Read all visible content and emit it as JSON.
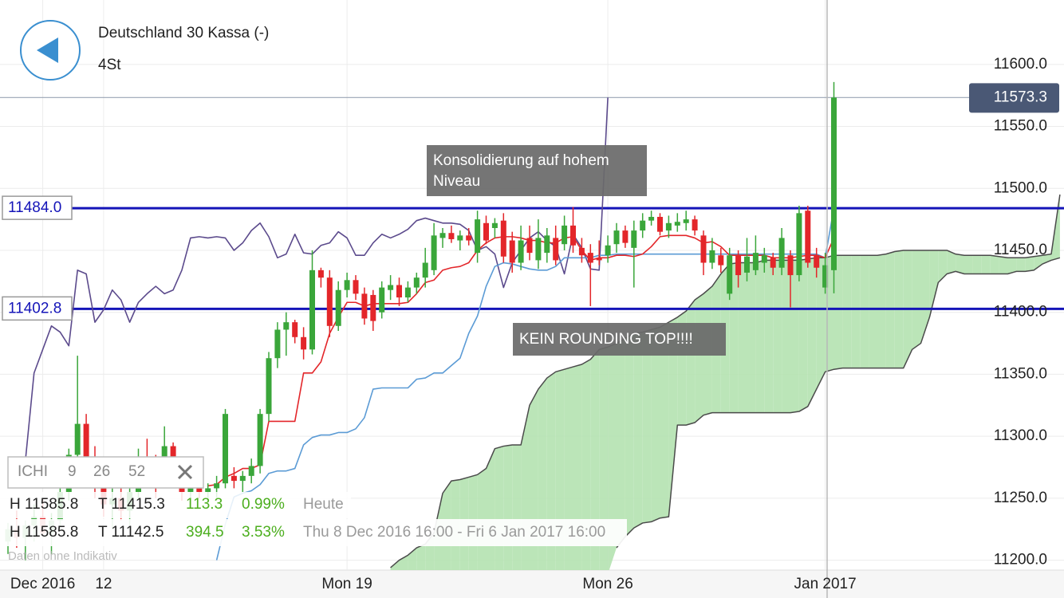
{
  "chart_data": {
    "type": "candlestick",
    "title": "Deutschland 30 Kassa (-)",
    "subtitle": "4St",
    "categories": [
      null,
      null,
      null,
      null,
      "Dec 2016",
      null,
      null,
      null,
      null,
      null,
      null,
      "12",
      null,
      null,
      null,
      null,
      null,
      null,
      null,
      null,
      null,
      null,
      null,
      null,
      null,
      null,
      null,
      null,
      null,
      null,
      null,
      null,
      null,
      null,
      null,
      null,
      null,
      null,
      null,
      "Mon 19",
      null,
      null,
      null,
      null,
      null,
      null,
      null,
      null,
      null,
      null,
      null,
      null,
      null,
      null,
      null,
      null,
      null,
      null,
      null,
      null,
      null,
      null,
      null,
      null,
      null,
      null,
      null,
      null,
      null,
      "Mon 26",
      null,
      null,
      null,
      null,
      null,
      null,
      null,
      null,
      null,
      null,
      null,
      null,
      null,
      null,
      null,
      null,
      null,
      null,
      null,
      null,
      null,
      null,
      null,
      null,
      "Jan 2017",
      null,
      null,
      null,
      null,
      null,
      null,
      null,
      null,
      null,
      null,
      null,
      null,
      null,
      null,
      null,
      null,
      null,
      null,
      null,
      null,
      null,
      null,
      null,
      null,
      null,
      null,
      null
    ],
    "open": [
      11215,
      11225,
      11218,
      11228,
      11235,
      11222,
      11232,
      11255,
      11285,
      11310,
      11283,
      11260,
      11245,
      11250,
      11240,
      11255,
      11280,
      11270,
      11262,
      11292,
      11268,
      11255,
      11260,
      11255,
      11258,
      11262,
      11268,
      11264,
      11268,
      11276,
      11318,
      11363,
      11386,
      11392,
      11380,
      11370,
      11434,
      11428,
      11389,
      11418,
      11426,
      11415,
      11414,
      11400,
      11418,
      11422,
      11412,
      11420,
      11428,
      11434,
      11460,
      11464,
      11458,
      11462,
      11448,
      11472,
      11468,
      11474,
      11458,
      11440,
      11460,
      11442,
      11448,
      11460,
      11455,
      11470,
      11452,
      11448,
      11444,
      11446,
      11455,
      11466,
      11452,
      11466,
      11474,
      11477,
      11466,
      11470,
      11472,
      11475,
      11462,
      11440,
      11446,
      11415,
      11446,
      11432,
      11434,
      11440,
      11444,
      11436,
      11446,
      11430,
      11482,
      11446,
      11420,
      11434,
      null,
      null,
      null,
      null,
      null,
      null,
      null,
      null,
      null,
      null,
      null,
      null,
      null,
      null,
      null,
      null,
      null,
      null,
      null,
      null,
      null,
      null,
      null,
      null,
      null,
      null
    ],
    "high": [
      11230,
      11240,
      11232,
      11245,
      11250,
      11238,
      11262,
      11290,
      11365,
      11318,
      11292,
      11270,
      11258,
      11262,
      11262,
      11290,
      11298,
      11285,
      11308,
      11295,
      11275,
      11266,
      11265,
      11262,
      11268,
      11322,
      11275,
      11272,
      11282,
      11322,
      11368,
      11392,
      11400,
      11394,
      11388,
      11450,
      11436,
      11434,
      11425,
      11432,
      11430,
      11420,
      11418,
      11425,
      11430,
      11428,
      11425,
      11432,
      11452,
      11472,
      11468,
      11470,
      11466,
      11468,
      11482,
      11478,
      11476,
      11480,
      11465,
      11470,
      11470,
      11475,
      11468,
      11470,
      11478,
      11485,
      11460,
      11455,
      11458,
      11462,
      11472,
      11470,
      11474,
      11480,
      11482,
      11480,
      11478,
      11480,
      11482,
      11478,
      11466,
      11460,
      11452,
      11452,
      11450,
      11460,
      11462,
      11452,
      11448,
      11468,
      11450,
      11486,
      11486,
      11452,
      11448,
      11585.8,
      null,
      null,
      null,
      null,
      null,
      null,
      null,
      null,
      null,
      null,
      null,
      null,
      null,
      null,
      null,
      null,
      null,
      null,
      null,
      null,
      null,
      null,
      null,
      null,
      null,
      null
    ],
    "low": [
      11205,
      11210,
      11200,
      11215,
      11220,
      11205,
      11225,
      11248,
      11278,
      11275,
      11250,
      11235,
      11225,
      11232,
      11228,
      11250,
      11262,
      11250,
      11258,
      11262,
      11248,
      11245,
      11250,
      11248,
      11250,
      11258,
      11258,
      11255,
      11262,
      11270,
      11312,
      11355,
      11365,
      11375,
      11362,
      11366,
      11420,
      11380,
      11385,
      11412,
      11410,
      11390,
      11385,
      11395,
      11410,
      11405,
      11408,
      11415,
      11420,
      11430,
      11452,
      11456,
      11450,
      11454,
      11440,
      11455,
      11460,
      11440,
      11432,
      11434,
      11442,
      11435,
      11440,
      11438,
      11450,
      11448,
      11440,
      11405,
      11438,
      11440,
      11448,
      11452,
      11420,
      11460,
      11470,
      11462,
      11460,
      11465,
      11466,
      11462,
      11430,
      11435,
      11432,
      11410,
      11420,
      11425,
      11430,
      11432,
      11430,
      11430,
      11404,
      11425,
      11436,
      11428,
      11415,
      11415.3,
      null,
      null,
      null,
      null,
      null,
      null,
      null,
      null,
      null,
      null,
      null,
      null,
      null,
      null,
      null,
      null,
      null,
      null,
      null,
      null,
      null,
      null,
      null,
      null,
      null,
      null
    ],
    "close": [
      11225,
      11218,
      11228,
      11235,
      11222,
      11232,
      11255,
      11285,
      11310,
      11283,
      11260,
      11245,
      11250,
      11240,
      11255,
      11280,
      11270,
      11262,
      11292,
      11268,
      11255,
      11260,
      11255,
      11258,
      11262,
      11318,
      11264,
      11268,
      11276,
      11318,
      11363,
      11386,
      11392,
      11380,
      11370,
      11434,
      11428,
      11389,
      11418,
      11426,
      11415,
      11395,
      11393,
      11420,
      11422,
      11412,
      11420,
      11428,
      11440,
      11462,
      11464,
      11459,
      11462,
      11458,
      11475,
      11458,
      11472,
      11445,
      11440,
      11458,
      11448,
      11460,
      11462,
      11442,
      11470,
      11454,
      11446,
      11440,
      11442,
      11454,
      11466,
      11456,
      11466,
      11474,
      11477,
      11465,
      11472,
      11473,
      11475,
      11466,
      11440,
      11450,
      11438,
      11446,
      11430,
      11445,
      11448,
      11446,
      11436,
      11460,
      11430,
      11480,
      11440,
      11436,
      11438,
      11573.3,
      null,
      null,
      null,
      null,
      null,
      null,
      null,
      null,
      null,
      null,
      null,
      null,
      null,
      null,
      null,
      null,
      null,
      null,
      null,
      null,
      null,
      null,
      null,
      null,
      null,
      null
    ],
    "up_color": "#3aa63a",
    "down_color": "#e3262a",
    "lines": [
      {
        "color": "#5b4a8c",
        "values": [
          null,
          null,
          11280,
          11351,
          11370,
          11389,
          11384,
          11373,
          11434,
          11431,
          11392,
          11402,
          11418,
          11410,
          11392,
          11408,
          11415,
          11421,
          11415,
          11418,
          11434,
          11460,
          11461,
          11460,
          11461,
          11460,
          11450,
          11456,
          11466,
          11472,
          11461,
          11444,
          11447,
          11463,
          11448,
          11447,
          11454,
          11456,
          11465,
          11460,
          11446,
          11446,
          11456,
          11463,
          11460,
          11463,
          11467,
          11474,
          11476,
          11474,
          11472,
          11472,
          11471,
          11466,
          11450,
          11453,
          11447,
          11420,
          11440,
          11450,
          11460,
          11465,
          11458,
          11453,
          11431,
          11463,
          11452,
          11435,
          11434,
          11573.3,
          null,
          null,
          null,
          null,
          null,
          null,
          null,
          null,
          null,
          null,
          null,
          null,
          null,
          null,
          null,
          null,
          null,
          null,
          null,
          null,
          null,
          null,
          null,
          null,
          null,
          null,
          null,
          null,
          null,
          null,
          null,
          null,
          null,
          null,
          null,
          null,
          null,
          null,
          null,
          null,
          null,
          null,
          null,
          null,
          null,
          null,
          null,
          null,
          null,
          null,
          null,
          null
        ]
      },
      {
        "color": "#5b9bd5",
        "values": [
          null,
          null,
          null,
          null,
          null,
          null,
          null,
          null,
          null,
          null,
          null,
          null,
          null,
          null,
          null,
          null,
          null,
          null,
          null,
          null,
          null,
          null,
          null,
          null,
          11200,
          11229,
          11251,
          11254,
          11256,
          11261,
          11270,
          11272,
          11272,
          11274,
          11293,
          11299,
          11301,
          11301,
          11303,
          11303,
          11306,
          11315,
          11338,
          11339,
          11339,
          11339,
          11339,
          11346,
          11347,
          11351,
          11351,
          11357,
          11363,
          11383,
          11397,
          11421,
          11437,
          11440,
          11439,
          11437,
          11435,
          11434,
          11434,
          11437,
          11444,
          11444,
          11444,
          11444,
          11446,
          11446,
          11447,
          11447,
          11447,
          11447,
          11447,
          11447,
          11447,
          11447,
          11447,
          11447,
          11447,
          11447,
          11447,
          11447,
          11447,
          11447,
          11447,
          11447,
          11447,
          11447,
          11447,
          11447,
          11447,
          11447,
          11444,
          11484,
          null,
          null,
          null,
          null,
          null,
          null,
          null,
          null,
          null,
          null,
          null,
          null,
          null,
          null,
          null,
          null,
          null,
          null,
          null,
          null,
          null,
          null,
          null,
          null,
          null,
          null
        ]
      },
      {
        "color": "#e3262a",
        "values": [
          null,
          null,
          null,
          null,
          null,
          null,
          null,
          null,
          null,
          null,
          null,
          null,
          null,
          null,
          null,
          null,
          null,
          null,
          null,
          null,
          null,
          null,
          null,
          11260,
          11261,
          11267,
          11270,
          11274,
          11274,
          11277,
          11312,
          11312,
          11312,
          11312,
          11351,
          11351,
          11360,
          11383,
          11396,
          11408,
          11408,
          11405,
          11407,
          11407,
          11407,
          11407,
          11408,
          11415,
          11424,
          11426,
          11434,
          11436,
          11437,
          11440,
          11450,
          11456,
          11460,
          11461,
          11461,
          11460,
          11458,
          11458,
          11456,
          11456,
          11460,
          11461,
          11450,
          11442,
          11444,
          11444,
          11446,
          11446,
          11445,
          11447,
          11453,
          11461,
          11462,
          11462,
          11462,
          11460,
          11456,
          11457,
          11453,
          11446,
          11446,
          11446,
          11446,
          11446,
          11444,
          11444,
          11444,
          11445,
          11446,
          11446,
          11444,
          11460,
          null,
          null,
          null,
          null,
          null,
          null,
          null,
          null,
          null,
          null,
          null,
          null,
          null,
          null,
          null,
          null,
          null,
          null,
          null,
          null,
          null,
          null,
          null,
          null,
          null,
          null
        ]
      }
    ],
    "cloud": {
      "color": "#4a4a4a",
      "fill": "#b4e2b0",
      "span_a": [
        null,
        null,
        null,
        null,
        null,
        null,
        null,
        null,
        null,
        null,
        null,
        null,
        null,
        null,
        null,
        null,
        null,
        null,
        null,
        null,
        null,
        null,
        null,
        null,
        null,
        null,
        null,
        null,
        null,
        null,
        null,
        null,
        null,
        null,
        null,
        null,
        null,
        null,
        null,
        null,
        null,
        null,
        null,
        null,
        11194,
        11200,
        11204,
        11210,
        11213,
        11222,
        11254,
        11264,
        11265,
        11267,
        11269,
        11274,
        11290,
        11292,
        11293,
        11293,
        11325,
        11338,
        11347,
        11352,
        11354,
        11356,
        11358,
        11362,
        11370,
        11372,
        11375,
        11379,
        11383,
        11384,
        11386,
        11388,
        11392,
        11396,
        11401,
        11410,
        11415,
        11421,
        11431,
        11439,
        11440,
        11440,
        11440,
        11442,
        11442,
        11442,
        11442,
        11442,
        11443,
        11444,
        11444,
        11446,
        11446,
        11446,
        11446,
        11446,
        11446,
        11447,
        11449,
        11450,
        11450,
        11450,
        11450,
        11450,
        11450,
        11447,
        11446,
        11446,
        11446,
        11446,
        11445,
        11444,
        11444,
        11444,
        11445,
        11446,
        11447,
        11495
      ],
      "span_b": [
        null,
        null,
        null,
        null,
        null,
        null,
        null,
        null,
        null,
        null,
        null,
        null,
        null,
        null,
        null,
        null,
        null,
        null,
        null,
        null,
        null,
        null,
        null,
        null,
        null,
        null,
        null,
        null,
        null,
        null,
        null,
        null,
        null,
        null,
        null,
        null,
        null,
        null,
        null,
        null,
        null,
        null,
        null,
        null,
        null,
        null,
        null,
        null,
        null,
        null,
        null,
        null,
        null,
        null,
        null,
        null,
        null,
        null,
        null,
        null,
        null,
        null,
        null,
        null,
        null,
        null,
        null,
        null,
        null,
        null,
        11210,
        11219,
        11226,
        11230,
        11231,
        11234,
        11235,
        11309,
        11309,
        11311,
        11317,
        11319,
        11319,
        11319,
        11319,
        11319,
        11319,
        11319,
        11319,
        11319,
        11319,
        11320,
        11324,
        11338,
        11352,
        11354,
        11355,
        11355,
        11355,
        11355,
        11355,
        11355,
        11355,
        11355,
        11370,
        11375,
        11396,
        11424,
        11431,
        11433,
        11431,
        11431,
        11431,
        11431,
        11431,
        11431,
        11433,
        11433,
        11434,
        11439,
        11442,
        11444
      ]
    },
    "levels": [
      {
        "value": 11484.0,
        "label": "11484.0",
        "color": "#1414b8"
      },
      {
        "value": 11402.8,
        "label": "11402.8",
        "color": "#1414b8"
      }
    ],
    "last_price": {
      "value": 11573.3,
      "label": "11573.3"
    },
    "ylim": [
      11192,
      11652
    ],
    "yticks": [
      {
        "value": 11200,
        "label": "11200.0"
      },
      {
        "value": 11250,
        "label": "11250.0"
      },
      {
        "value": 11300,
        "label": "11300.0"
      },
      {
        "value": 11350,
        "label": "11350.0"
      },
      {
        "value": 11400,
        "label": "11400.0"
      },
      {
        "value": 11450,
        "label": "11450.0"
      },
      {
        "value": 11500,
        "label": "11500.0"
      },
      {
        "value": 11550,
        "label": "11550.0"
      },
      {
        "value": 11600,
        "label": "11600.0"
      }
    ],
    "grid": true,
    "annotations": [
      {
        "lines": [
          "Konsolidierung auf hohem",
          "Niveau"
        ]
      },
      {
        "lines": [
          "KEIN ROUNDING TOP!!!!"
        ]
      }
    ],
    "indicator": {
      "name": "ICHI",
      "params": [
        9,
        26,
        52
      ]
    },
    "stats": [
      [
        "H 11585.8",
        "T 11415.3",
        "113.3",
        "0.99%",
        "Heute"
      ],
      [
        "H 11585.8",
        "T 11142.5",
        "394.5",
        "3.53%",
        "Thu 8 Dec 2016 16:00 - Fri 6 Jan 2017 16:00"
      ]
    ],
    "note": "Daten ohne Indikativ"
  }
}
